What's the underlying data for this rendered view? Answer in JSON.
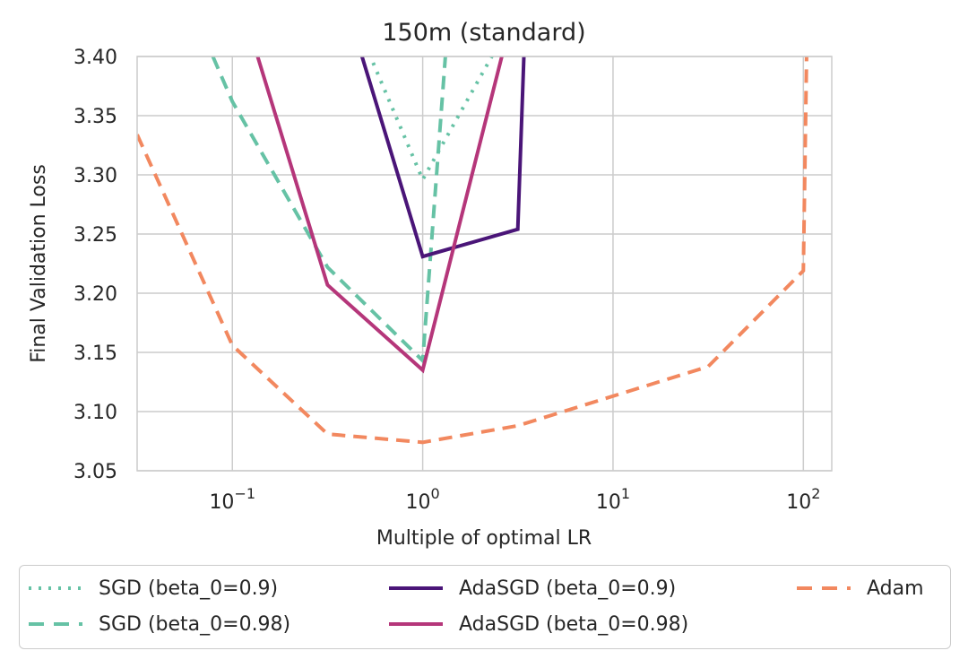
{
  "chart_data": {
    "type": "line",
    "title": "150m (standard)",
    "xlabel": "Multiple of optimal LR",
    "ylabel": "Final Validation Loss",
    "xscale": "log",
    "xlim": [
      0.0316,
      141
    ],
    "ylim": [
      3.05,
      3.4
    ],
    "grid": true,
    "y_ticks": [
      3.05,
      3.1,
      3.15,
      3.2,
      3.25,
      3.3,
      3.35,
      3.4
    ],
    "y_tick_labels": [
      "3.05",
      "3.10",
      "3.15",
      "3.20",
      "3.25",
      "3.30",
      "3.35",
      "3.40"
    ],
    "x_ticks": [
      0.1,
      1,
      10,
      100
    ],
    "x_tick_labels": [
      {
        "base": "10",
        "exp": "−1"
      },
      {
        "base": "10",
        "exp": "0"
      },
      {
        "base": "10",
        "exp": "1"
      },
      {
        "base": "10",
        "exp": "2"
      }
    ],
    "legend_placement": "below",
    "series": [
      {
        "name": "SGD (beta_0=0.9)",
        "color": "#66c2a5",
        "style": "dotted",
        "x": [
          0.5,
          1,
          2.5
        ],
        "y": [
          3.41,
          3.296,
          3.41
        ]
      },
      {
        "name": "SGD (beta_0=0.98)",
        "color": "#66c2a5",
        "style": "dashed",
        "x": [
          0.079,
          0.1,
          0.316,
          1,
          1.33
        ],
        "y": [
          3.4,
          3.362,
          3.222,
          3.143,
          3.41
        ]
      },
      {
        "name": "AdaSGD (beta_0=0.9)",
        "color": "#4a1578",
        "style": "solid",
        "x": [
          0.48,
          1,
          3.16,
          3.4
        ],
        "y": [
          3.4,
          3.231,
          3.254,
          3.4
        ]
      },
      {
        "name": "AdaSGD (beta_0=0.98)",
        "color": "#b5367a",
        "style": "solid",
        "x": [
          0.13,
          0.316,
          1,
          2.7
        ],
        "y": [
          3.41,
          3.207,
          3.135,
          3.41
        ]
      },
      {
        "name": "Adam",
        "color": "#f2885f",
        "style": "dashed",
        "x": [
          0.0316,
          0.1,
          0.316,
          1,
          3.16,
          31.6,
          100,
          104
        ],
        "y": [
          3.334,
          3.156,
          3.081,
          3.074,
          3.088,
          3.138,
          3.219,
          3.4
        ]
      }
    ]
  }
}
